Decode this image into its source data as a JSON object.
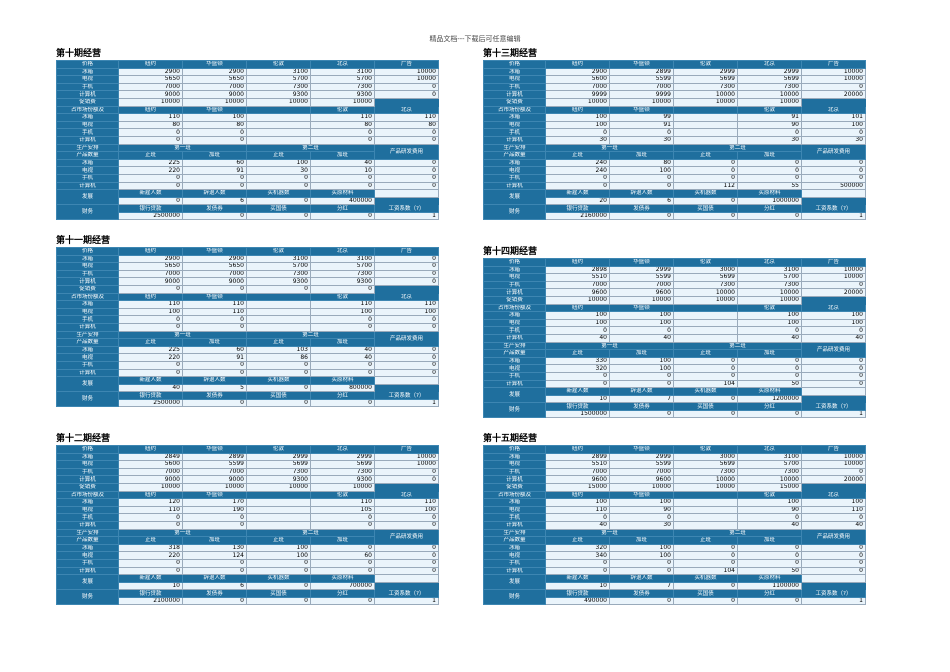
{
  "header": "精品文档---下载后可任意编辑",
  "labels": {
    "price": "价格",
    "cities": [
      "纽约",
      "华盛顿",
      "伦敦",
      "北京"
    ],
    "ad": "广告",
    "products": [
      "冰箱",
      "电视",
      "手机",
      "计算机"
    ],
    "promo": "促销费",
    "share": "占市场份额及",
    "plan": "生产安排",
    "line1": "第一班",
    "line2": "第二班",
    "qty": "产品数量",
    "normal": "正班",
    "overtime": "加班",
    "rnd": "产品研发费用",
    "dev": "发展",
    "devcols": [
      "新雇人数",
      "辞退人数",
      "买机器数",
      "买原材料"
    ],
    "fin": "财务",
    "fincols": [
      "银行贷款",
      "发债券",
      "买国债",
      "分红",
      "工资系数（?）"
    ]
  },
  "periods": [
    {
      "title": "第十期经营",
      "price": [
        [
          "2900",
          "2900",
          "3100",
          "3100",
          "10000"
        ],
        [
          "5650",
          "5650",
          "5700",
          "5700",
          "10000"
        ],
        [
          "7000",
          "7000",
          "7300",
          "7300",
          "0"
        ],
        [
          "9000",
          "9000",
          "9300",
          "9300",
          "0"
        ]
      ],
      "promo": [
        "10000",
        "10000",
        "10000",
        "10000"
      ],
      "share": [
        [
          "110",
          "100",
          "110",
          "110"
        ],
        [
          "80",
          "80",
          "80",
          "80"
        ],
        [
          "0",
          "0",
          "0",
          "0"
        ],
        [
          "0",
          "0",
          "0",
          "0"
        ]
      ],
      "plan": [
        [
          "225",
          "60",
          "100",
          "40",
          "0"
        ],
        [
          "220",
          "91",
          "30",
          "10",
          "0"
        ],
        [
          "0",
          "0",
          "0",
          "0",
          "0"
        ],
        [
          "0",
          "0",
          "0",
          "0",
          "0"
        ]
      ],
      "dev": [
        "0",
        "6",
        "0",
        "400000"
      ],
      "fin": [
        "2500000",
        "0",
        "0",
        "0",
        "1"
      ]
    },
    {
      "title": "第十一期经营",
      "price": [
        [
          "2900",
          "2900",
          "3100",
          "3100",
          "0"
        ],
        [
          "5650",
          "5650",
          "5700",
          "5700",
          "0"
        ],
        [
          "7000",
          "7000",
          "7300",
          "7300",
          "0"
        ],
        [
          "9000",
          "9000",
          "9300",
          "9300",
          "0"
        ]
      ],
      "promo": [
        "0",
        "0",
        "0",
        "0"
      ],
      "share": [
        [
          "110",
          "110",
          "110",
          "110"
        ],
        [
          "100",
          "110",
          "100",
          "100"
        ],
        [
          "0",
          "0",
          "0",
          "0"
        ],
        [
          "0",
          "0",
          "0",
          "0"
        ]
      ],
      "plan": [
        [
          "225",
          "60",
          "103",
          "40",
          "0"
        ],
        [
          "220",
          "91",
          "86",
          "40",
          "0"
        ],
        [
          "0",
          "0",
          "0",
          "0",
          "0"
        ],
        [
          "0",
          "0",
          "0",
          "0",
          "0"
        ]
      ],
      "dev": [
        "40",
        "5",
        "0",
        "800000"
      ],
      "fin": [
        "2500000",
        "0",
        "0",
        "0",
        "1"
      ]
    },
    {
      "title": "第十二期经营",
      "price": [
        [
          "2849",
          "2899",
          "2999",
          "2999",
          "10000"
        ],
        [
          "5600",
          "5599",
          "5699",
          "5699",
          "10000"
        ],
        [
          "7000",
          "7000",
          "7300",
          "7300",
          "0"
        ],
        [
          "9000",
          "9000",
          "9300",
          "9300",
          "0"
        ]
      ],
      "promo": [
        "10000",
        "10000",
        "10000",
        "10000"
      ],
      "share": [
        [
          "120",
          "170",
          "110",
          "110"
        ],
        [
          "110",
          "190",
          "105",
          "100"
        ],
        [
          "0",
          "0",
          "0",
          "0"
        ],
        [
          "0",
          "0",
          "0",
          "0"
        ]
      ],
      "plan": [
        [
          "318",
          "130",
          "100",
          "0",
          "0"
        ],
        [
          "220",
          "124",
          "100",
          "60",
          "0"
        ],
        [
          "0",
          "0",
          "0",
          "0",
          "0"
        ],
        [
          "0",
          "0",
          "0",
          "0",
          "0"
        ]
      ],
      "dev": [
        "10",
        "6",
        "0",
        "700000"
      ],
      "fin": [
        "2100000",
        "0",
        "0",
        "0",
        "1"
      ]
    },
    {
      "title": "第十三期经营",
      "price": [
        [
          "2900",
          "2899",
          "2999",
          "2999",
          "10000"
        ],
        [
          "5600",
          "5599",
          "5699",
          "5699",
          "10000"
        ],
        [
          "7000",
          "7000",
          "7300",
          "7300",
          "0"
        ],
        [
          "9999",
          "9999",
          "10000",
          "10000",
          "20000"
        ]
      ],
      "promo": [
        "10000",
        "10000",
        "10000",
        "10000"
      ],
      "share": [
        [
          "100",
          "99",
          "91",
          "101"
        ],
        [
          "100",
          "91",
          "90",
          "100"
        ],
        [
          "0",
          "0",
          "0",
          "0"
        ],
        [
          "30",
          "30",
          "30",
          "30"
        ]
      ],
      "plan": [
        [
          "240",
          "80",
          "0",
          "0",
          "0"
        ],
        [
          "240",
          "100",
          "0",
          "0",
          "0"
        ],
        [
          "0",
          "0",
          "0",
          "0",
          "0"
        ],
        [
          "0",
          "0",
          "112",
          "55",
          "500000"
        ]
      ],
      "dev": [
        "20",
        "6",
        "0",
        "1000000"
      ],
      "fin": [
        "2160000",
        "0",
        "0",
        "0",
        "1"
      ]
    },
    {
      "title": "第十四期经营",
      "price": [
        [
          "2898",
          "2999",
          "3000",
          "3100",
          "10000"
        ],
        [
          "5510",
          "5599",
          "5699",
          "5700",
          "10000"
        ],
        [
          "7000",
          "7000",
          "7300",
          "7300",
          "0"
        ],
        [
          "9600",
          "9600",
          "10000",
          "10000",
          "20000"
        ]
      ],
      "promo": [
        "10000",
        "10000",
        "10000",
        "10000"
      ],
      "share": [
        [
          "100",
          "100",
          "100",
          "100"
        ],
        [
          "100",
          "100",
          "100",
          "100"
        ],
        [
          "0",
          "0",
          "0",
          "0"
        ],
        [
          "40",
          "40",
          "40",
          "40"
        ]
      ],
      "plan": [
        [
          "330",
          "100",
          "0",
          "0",
          "0"
        ],
        [
          "320",
          "100",
          "0",
          "0",
          "0"
        ],
        [
          "0",
          "0",
          "0",
          "0",
          "0"
        ],
        [
          "0",
          "0",
          "104",
          "50",
          "0"
        ]
      ],
      "dev": [
        "10",
        "7",
        "0",
        "1200000"
      ],
      "fin": [
        "1500000",
        "0",
        "0",
        "0",
        "1"
      ]
    },
    {
      "title": "第十五期经营",
      "price": [
        [
          "2899",
          "2999",
          "3000",
          "3100",
          "10000"
        ],
        [
          "5510",
          "5599",
          "5699",
          "5700",
          "10000"
        ],
        [
          "7000",
          "7000",
          "7300",
          "7300",
          "0"
        ],
        [
          "9600",
          "9600",
          "10000",
          "10000",
          "20000"
        ]
      ],
      "promo": [
        "15000",
        "10000",
        "10000",
        "15000"
      ],
      "share": [
        [
          "100",
          "100",
          "100",
          "100"
        ],
        [
          "110",
          "90",
          "90",
          "110"
        ],
        [
          "0",
          "0",
          "0",
          "0"
        ],
        [
          "40",
          "30",
          "40",
          "40"
        ]
      ],
      "plan": [
        [
          "320",
          "100",
          "0",
          "0",
          "0"
        ],
        [
          "340",
          "100",
          "0",
          "0",
          "0"
        ],
        [
          "0",
          "0",
          "0",
          "0",
          "0"
        ],
        [
          "0",
          "0",
          "104",
          "50",
          "0"
        ]
      ],
      "dev": [
        "10",
        "7",
        "0",
        "1100000"
      ],
      "fin": [
        "490000",
        "0",
        "0",
        "0",
        "1"
      ]
    }
  ]
}
